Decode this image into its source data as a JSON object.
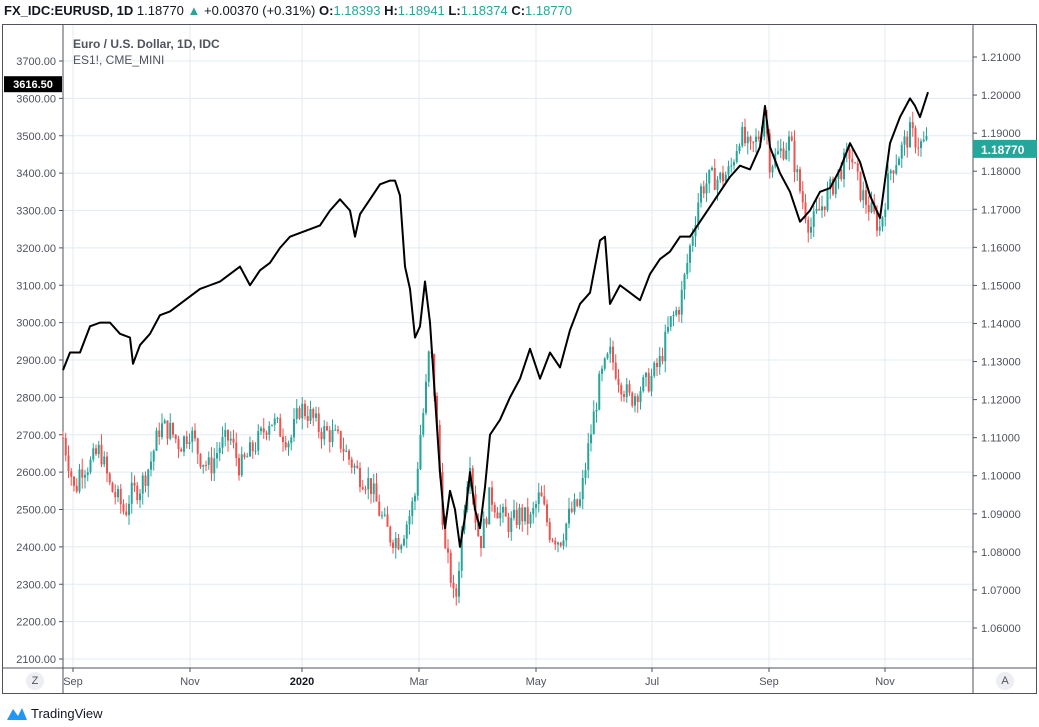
{
  "header": {
    "symbol": "FX_IDC:EURUSD, 1D",
    "last": "1.18770",
    "change": "+0.00370 (+0.31%)",
    "o_label": "O:",
    "o": "1.18393",
    "h_label": "H:",
    "h": "1.18941",
    "l_label": "L:",
    "l": "1.18374",
    "c_label": "C:",
    "c": "1.18770"
  },
  "legend": {
    "title": "Euro / U.S. Dollar, 1D, IDC",
    "overlay": "ES1!, CME_MINI"
  },
  "buttons": {
    "z": "Z",
    "a": "A"
  },
  "brand": "TradingView",
  "colors": {
    "up": "#26a69a",
    "down": "#ef5350",
    "line": "#000000",
    "grid": "#e1ecf2"
  },
  "chart_data": {
    "type": "line",
    "title": "Euro / U.S. Dollar, 1D, IDC",
    "x_ticks": [
      "Sep",
      "Nov",
      "2020",
      "Mar",
      "May",
      "Jul",
      "Sep",
      "Nov"
    ],
    "x_tick_t": [
      2,
      25.4,
      47.8,
      71.2,
      94.6,
      117.8,
      141.2,
      164.4
    ],
    "x_range": [
      0,
      173
    ],
    "left_axis": {
      "ticks": [
        "3700.00",
        "3600.00",
        "3500.00",
        "3400.00",
        "3300.00",
        "3200.00",
        "3100.00",
        "3000.00",
        "2900.00",
        "2800.00",
        "2700.00",
        "2600.00",
        "2500.00",
        "2400.00",
        "2300.00",
        "2200.00",
        "2100.00"
      ],
      "range": [
        2070,
        3800
      ],
      "last_label": "3616.50",
      "last": 3616.5
    },
    "right_axis": {
      "ticks": [
        "1.21000",
        "1.20000",
        "1.19000",
        "1.18000",
        "1.17000",
        "1.16000",
        "1.15000",
        "1.14000",
        "1.13000",
        "1.12000",
        "1.11000",
        "1.10000",
        "1.09000",
        "1.08000",
        "1.07000",
        "1.06000"
      ],
      "range": [
        1.049,
        1.2157
      ],
      "last_label": "1.18770",
      "last": 1.1877
    },
    "series": [
      {
        "name": "ES1!, CME_MINI",
        "axis": "left",
        "type": "line",
        "points": [
          [
            0,
            2873
          ],
          [
            1.4,
            2920
          ],
          [
            3.4,
            2920
          ],
          [
            5.4,
            2990
          ],
          [
            7.4,
            3000
          ],
          [
            9.4,
            3000
          ],
          [
            11.4,
            2970
          ],
          [
            13.4,
            2960
          ],
          [
            14,
            2890
          ],
          [
            15.4,
            2940
          ],
          [
            17.4,
            2970
          ],
          [
            19.4,
            3020
          ],
          [
            21.4,
            3030
          ],
          [
            23.4,
            3050
          ],
          [
            25.4,
            3070
          ],
          [
            27.4,
            3090
          ],
          [
            29.4,
            3100
          ],
          [
            31.4,
            3110
          ],
          [
            33.4,
            3130
          ],
          [
            35.4,
            3150
          ],
          [
            37.4,
            3100
          ],
          [
            39.4,
            3140
          ],
          [
            41.4,
            3160
          ],
          [
            43.4,
            3200
          ],
          [
            45.4,
            3230
          ],
          [
            47.4,
            3240
          ],
          [
            49.4,
            3250
          ],
          [
            51.4,
            3260
          ],
          [
            53.4,
            3300
          ],
          [
            55.4,
            3330
          ],
          [
            57.4,
            3300
          ],
          [
            58.4,
            3230
          ],
          [
            59.4,
            3290
          ],
          [
            61.4,
            3330
          ],
          [
            63.4,
            3370
          ],
          [
            65.4,
            3380
          ],
          [
            66.4,
            3380
          ],
          [
            67.4,
            3340
          ],
          [
            68.4,
            3150
          ],
          [
            69.4,
            3090
          ],
          [
            70.4,
            2960
          ],
          [
            71.4,
            2990
          ],
          [
            72.4,
            3110
          ],
          [
            73.4,
            3000
          ],
          [
            74.4,
            2800
          ],
          [
            75.4,
            2600
          ],
          [
            76.4,
            2450
          ],
          [
            77.4,
            2550
          ],
          [
            78.4,
            2500
          ],
          [
            79.4,
            2400
          ],
          [
            80.4,
            2480
          ],
          [
            81.4,
            2600
          ],
          [
            82.4,
            2500
          ],
          [
            83.4,
            2450
          ],
          [
            84.4,
            2560
          ],
          [
            85.4,
            2700
          ],
          [
            87.4,
            2740
          ],
          [
            89.4,
            2800
          ],
          [
            91.4,
            2850
          ],
          [
            93.4,
            2930
          ],
          [
            95.4,
            2850
          ],
          [
            97.4,
            2920
          ],
          [
            99.4,
            2880
          ],
          [
            101.4,
            2980
          ],
          [
            103.4,
            3050
          ],
          [
            105.4,
            3080
          ],
          [
            107.4,
            3220
          ],
          [
            108.4,
            3230
          ],
          [
            109.4,
            3050
          ],
          [
            111.4,
            3100
          ],
          [
            113.4,
            3080
          ],
          [
            115.4,
            3060
          ],
          [
            117.4,
            3130
          ],
          [
            119.4,
            3170
          ],
          [
            121.4,
            3190
          ],
          [
            123.4,
            3230
          ],
          [
            125.4,
            3230
          ],
          [
            127.4,
            3270
          ],
          [
            129.4,
            3310
          ],
          [
            131.4,
            3350
          ],
          [
            133.4,
            3390
          ],
          [
            135.4,
            3420
          ],
          [
            137.4,
            3410
          ],
          [
            139.4,
            3470
          ],
          [
            140.4,
            3580
          ],
          [
            141.4,
            3470
          ],
          [
            143.4,
            3400
          ],
          [
            145.4,
            3350
          ],
          [
            147.4,
            3270
          ],
          [
            149.4,
            3300
          ],
          [
            151.4,
            3350
          ],
          [
            153.4,
            3360
          ],
          [
            155.4,
            3410
          ],
          [
            157.4,
            3480
          ],
          [
            159.4,
            3430
          ],
          [
            161.4,
            3340
          ],
          [
            163.4,
            3280
          ],
          [
            165.4,
            3480
          ],
          [
            167.4,
            3550
          ],
          [
            169.4,
            3600
          ],
          [
            170.4,
            3580
          ],
          [
            171.4,
            3550
          ],
          [
            173,
            3616.5
          ]
        ]
      },
      {
        "name": "EURUSD",
        "axis": "right",
        "type": "candlestick",
        "closes": [
          [
            0,
            1.11
          ],
          [
            1.4,
            1.102
          ],
          [
            2.4,
            1.095
          ],
          [
            3.4,
            1.102
          ],
          [
            5.4,
            1.103
          ],
          [
            7.4,
            1.107
          ],
          [
            9.4,
            1.097
          ],
          [
            11.4,
            1.093
          ],
          [
            12.4,
            1.09
          ],
          [
            13.4,
            1.095
          ],
          [
            15.4,
            1.097
          ],
          [
            17.4,
            1.103
          ],
          [
            19.4,
            1.113
          ],
          [
            21.4,
            1.112
          ],
          [
            23.4,
            1.108
          ],
          [
            25.4,
            1.112
          ],
          [
            27.4,
            1.105
          ],
          [
            29.4,
            1.102
          ],
          [
            31.4,
            1.108
          ],
          [
            33.4,
            1.11
          ],
          [
            35.4,
            1.102
          ],
          [
            37.4,
            1.106
          ],
          [
            39.4,
            1.11
          ],
          [
            41.4,
            1.115
          ],
          [
            43.4,
            1.112
          ],
          [
            45.4,
            1.109
          ],
          [
            47.4,
            1.118
          ],
          [
            49.4,
            1.116
          ],
          [
            51.4,
            1.112
          ],
          [
            53.4,
            1.111
          ],
          [
            55.4,
            1.109
          ],
          [
            57.4,
            1.104
          ],
          [
            59.4,
            1.1
          ],
          [
            61.4,
            1.098
          ],
          [
            63.4,
            1.09
          ],
          [
            65.4,
            1.084
          ],
          [
            67.4,
            1.083
          ],
          [
            69.4,
            1.09
          ],
          [
            70.4,
            1.095
          ],
          [
            71.4,
            1.11
          ],
          [
            72.4,
            1.12
          ],
          [
            73.4,
            1.135
          ],
          [
            74.4,
            1.12
          ],
          [
            75.4,
            1.1
          ],
          [
            76.4,
            1.08
          ],
          [
            77.4,
            1.075
          ],
          [
            78.4,
            1.065
          ],
          [
            79.4,
            1.08
          ],
          [
            80.4,
            1.095
          ],
          [
            81.4,
            1.105
          ],
          [
            82.4,
            1.09
          ],
          [
            83.4,
            1.082
          ],
          [
            84.4,
            1.088
          ],
          [
            85.4,
            1.095
          ],
          [
            87.4,
            1.09
          ],
          [
            89.4,
            1.087
          ],
          [
            91.4,
            1.09
          ],
          [
            93.4,
            1.088
          ],
          [
            95.4,
            1.095
          ],
          [
            97.4,
            1.085
          ],
          [
            99.4,
            1.083
          ],
          [
            101.4,
            1.09
          ],
          [
            103.4,
            1.093
          ],
          [
            105.4,
            1.11
          ],
          [
            107.4,
            1.125
          ],
          [
            109.4,
            1.132
          ],
          [
            111.4,
            1.125
          ],
          [
            113.4,
            1.12
          ],
          [
            115.4,
            1.123
          ],
          [
            117.4,
            1.125
          ],
          [
            119.4,
            1.13
          ],
          [
            121.4,
            1.14
          ],
          [
            123.4,
            1.145
          ],
          [
            125.4,
            1.16
          ],
          [
            127.4,
            1.175
          ],
          [
            129.4,
            1.178
          ],
          [
            131.4,
            1.178
          ],
          [
            133.4,
            1.18
          ],
          [
            135.4,
            1.19
          ],
          [
            137.4,
            1.185
          ],
          [
            139.4,
            1.19
          ],
          [
            140.4,
            1.195
          ],
          [
            141.4,
            1.182
          ],
          [
            143.4,
            1.185
          ],
          [
            145.4,
            1.188
          ],
          [
            147.4,
            1.175
          ],
          [
            149.4,
            1.165
          ],
          [
            151.4,
            1.17
          ],
          [
            153.4,
            1.175
          ],
          [
            155.4,
            1.18
          ],
          [
            157.4,
            1.185
          ],
          [
            159.4,
            1.175
          ],
          [
            161.4,
            1.17
          ],
          [
            163.4,
            1.165
          ],
          [
            165.4,
            1.18
          ],
          [
            167.4,
            1.185
          ],
          [
            169.4,
            1.19
          ],
          [
            171.4,
            1.187
          ],
          [
            173,
            1.1877
          ]
        ]
      }
    ]
  }
}
